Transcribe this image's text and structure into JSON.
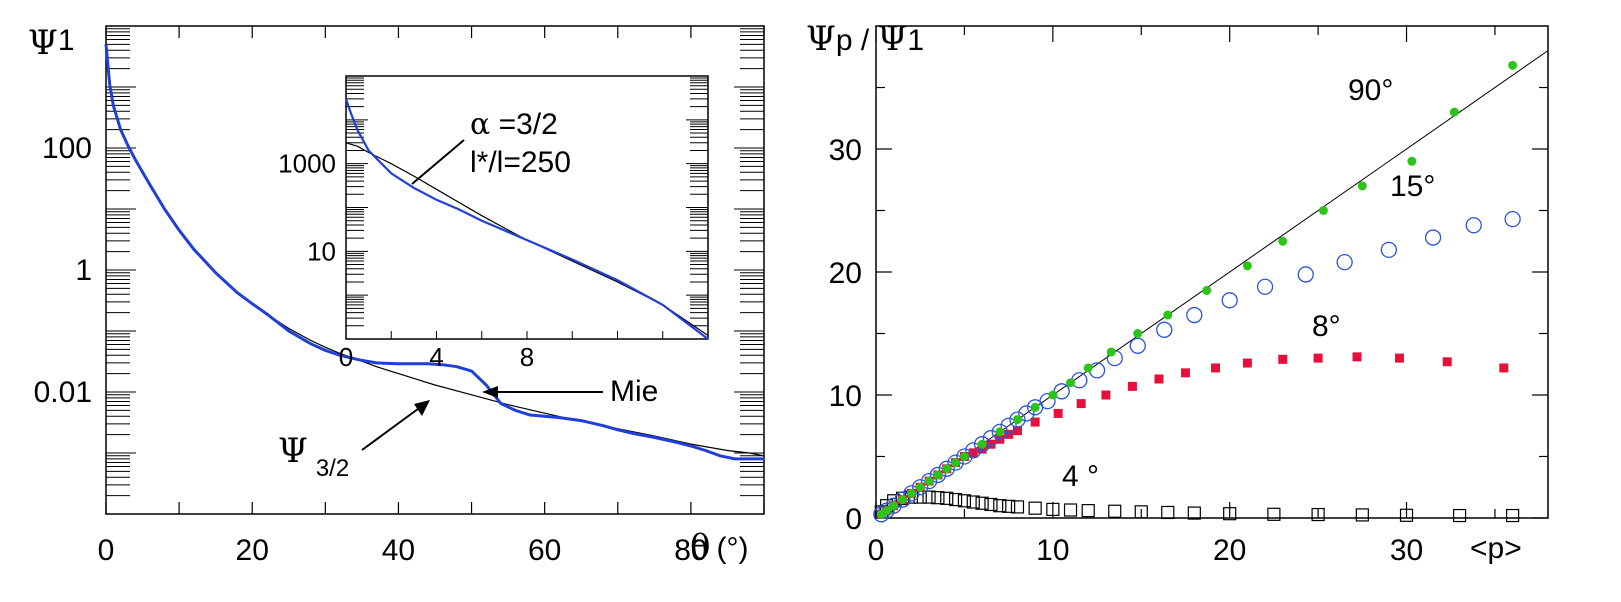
{
  "colors": {
    "blue": "#1f3fd8",
    "green": "#2cc41b",
    "red": "#e8103a",
    "black": "#000000",
    "open_circle": "#2b54d8"
  },
  "chart_data": [
    {
      "type": "line",
      "panel": "left",
      "ylabel_symbol": "Ψ",
      "ylabel_sup": "1",
      "xlabel_symbol": "θ",
      "xlabel_unit": "(°)",
      "xlim": [
        0,
        90
      ],
      "ylim_log10": [
        -4,
        4
      ],
      "yscale": "log",
      "xticks": [
        "0",
        "20",
        "40",
        "60",
        "80"
      ],
      "yticks": [
        "100",
        "1",
        "0.01"
      ],
      "annotations": {
        "mie": "Mie",
        "psi_symbol": "Ψ",
        "psi_sub": "3/2"
      },
      "series": [
        {
          "name": "Mie",
          "color": "#1f3fd8",
          "x": [
            0,
            0.5,
            1,
            2,
            3,
            4,
            5,
            6,
            8,
            10,
            12,
            15,
            18,
            20,
            22,
            25,
            28,
            30,
            32,
            35,
            37,
            40,
            42,
            44,
            46,
            48,
            50,
            52,
            54,
            56,
            58,
            60,
            62,
            65,
            68,
            70,
            72,
            75,
            78,
            80,
            82,
            84,
            86,
            88,
            90
          ],
          "y": [
            5000,
            1100,
            500,
            200,
            110,
            65,
            40,
            25,
            10,
            4.5,
            2.2,
            0.9,
            0.42,
            0.28,
            0.19,
            0.1,
            0.062,
            0.048,
            0.04,
            0.033,
            0.03,
            0.029,
            0.029,
            0.029,
            0.028,
            0.026,
            0.022,
            0.013,
            0.0065,
            0.005,
            0.0042,
            0.004,
            0.0038,
            0.0034,
            0.0028,
            0.0024,
            0.0021,
            0.0018,
            0.0015,
            0.0013,
            0.0011,
            0.0009,
            0.0008,
            0.0008,
            0.0008
          ]
        },
        {
          "name": "Ψ 3/2",
          "color": "#000000",
          "x": [
            0,
            0.5,
            1,
            2,
            3,
            4,
            5,
            6,
            8,
            10,
            12,
            15,
            18,
            20,
            22,
            25,
            28,
            30,
            32,
            35,
            37,
            40,
            45,
            50,
            55,
            60,
            65,
            70,
            75,
            80,
            85,
            88,
            90
          ],
          "y": [
            5000,
            1100,
            500,
            200,
            110,
            65,
            40,
            25,
            10,
            4.5,
            2.2,
            0.9,
            0.42,
            0.28,
            0.19,
            0.11,
            0.07,
            0.054,
            0.043,
            0.032,
            0.026,
            0.02,
            0.013,
            0.009,
            0.0062,
            0.0045,
            0.0033,
            0.0025,
            0.0019,
            0.0014,
            0.0011,
            0.001,
            0.0009
          ]
        }
      ],
      "inset": {
        "xticks": [
          "0",
          "4",
          "8"
        ],
        "yticks": [
          "1000",
          "10"
        ],
        "xlim": [
          0,
          16
        ],
        "ylim_log10": [
          -1,
          5
        ],
        "annotation_alpha_symbol": "α",
        "annotation_alpha": " =3/2",
        "annotation_l": "l*/l=250",
        "series": [
          {
            "name": "Mie",
            "color": "#1f3fd8",
            "x": [
              0,
              0.2,
              0.5,
              1,
              2,
              3,
              4,
              5,
              6,
              7,
              8,
              10,
              12,
              14,
              16
            ],
            "y": [
              30000,
              15000,
              6000,
              2000,
              600,
              280,
              150,
              90,
              50,
              30,
              18,
              6.5,
              2.2,
              0.6,
              0.1
            ]
          },
          {
            "name": "α =3/2 l*/l=250",
            "color": "#000000",
            "x": [
              0,
              0.5,
              1,
              2,
              3,
              4,
              5,
              6,
              7,
              8,
              10,
              12,
              14,
              16
            ],
            "y": [
              3000,
              2500,
              1800,
              1000,
              520,
              260,
              130,
              65,
              34,
              18,
              6,
              2,
              0.6,
              0.12
            ]
          }
        ]
      }
    },
    {
      "type": "scatter",
      "panel": "right",
      "ylabel_symbol1": "Ψ",
      "ylabel_sup1": "p",
      "ylabel_sep": " / ",
      "ylabel_symbol2": "Ψ",
      "ylabel_sup2": "1",
      "xlabel": "<p>",
      "xlim": [
        0,
        38
      ],
      "ylim": [
        0,
        40
      ],
      "xticks": [
        "0",
        "10",
        "20",
        "30"
      ],
      "yticks": [
        "0",
        "10",
        "20",
        "30"
      ],
      "reference_line": {
        "x": [
          0,
          38
        ],
        "y": [
          0,
          38
        ]
      },
      "series": [
        {
          "name": "90°",
          "color": "#2cc41b",
          "marker": "filled-circle",
          "x": [
            0.3,
            0.6,
            1,
            1.5,
            2,
            2.5,
            3,
            3.5,
            4,
            4.5,
            5,
            6,
            7,
            8,
            9,
            10,
            11,
            12,
            13.3,
            14.8,
            16.5,
            18.7,
            21,
            23,
            25.3,
            27.5,
            30.3,
            32.7,
            36
          ],
          "y": [
            0.3,
            0.6,
            1,
            1.5,
            2,
            2.5,
            3,
            3.5,
            4,
            4.5,
            5,
            6,
            7,
            8,
            9,
            10,
            11,
            12.2,
            13.5,
            15,
            16.5,
            18.5,
            20.5,
            22.5,
            25,
            27,
            29,
            33,
            36.8
          ]
        },
        {
          "name": "15°",
          "color": "#2b54d8",
          "marker": "open-circle",
          "x": [
            0.3,
            0.6,
            1,
            1.5,
            2,
            2.5,
            3,
            3.5,
            4,
            4.5,
            5,
            5.5,
            6,
            6.5,
            7,
            7.5,
            8,
            8.5,
            9,
            9.7,
            10.5,
            11.5,
            12.5,
            13.5,
            14.8,
            16.3,
            18,
            20,
            22,
            24.3,
            26.5,
            29,
            31.5,
            33.8,
            36
          ],
          "y": [
            0.3,
            0.6,
            1,
            1.5,
            2,
            2.5,
            3,
            3.5,
            4,
            4.5,
            5,
            5.5,
            6,
            6.5,
            7,
            7.5,
            8,
            8.5,
            9,
            9.5,
            10.3,
            11.2,
            12,
            13,
            14,
            15.3,
            16.5,
            17.7,
            18.8,
            19.8,
            20.8,
            21.8,
            22.8,
            23.8,
            24.3
          ]
        },
        {
          "name": "8°",
          "color": "#e8103a",
          "marker": "filled-square",
          "x": [
            0.3,
            0.6,
            1,
            1.5,
            2,
            2.5,
            3,
            3.5,
            4,
            4.5,
            5,
            5.5,
            6,
            6.5,
            7,
            7.5,
            8,
            9,
            10.3,
            11.6,
            13,
            14.5,
            16,
            17.5,
            19.2,
            21,
            23,
            25,
            27.2,
            29.6,
            32.3,
            35.5
          ],
          "y": [
            0.3,
            0.6,
            1,
            1.5,
            2,
            2.5,
            3,
            3.5,
            4,
            4.5,
            5,
            5.3,
            5.6,
            6,
            6.4,
            6.8,
            7.1,
            7.8,
            8.5,
            9.3,
            10,
            10.7,
            11.3,
            11.8,
            12.2,
            12.6,
            12.9,
            13,
            13.1,
            13,
            12.7,
            12.2
          ]
        },
        {
          "name": "4 °",
          "color": "#000000",
          "marker": "open-square",
          "x": [
            0.3,
            0.6,
            1,
            1.5,
            2,
            2.5,
            3,
            3.5,
            4,
            4.5,
            5,
            5.5,
            6,
            6.5,
            7,
            7.5,
            8,
            9,
            10,
            11,
            12,
            13.5,
            15,
            16.5,
            18,
            20,
            22.5,
            25,
            27.5,
            30,
            33,
            36
          ],
          "y": [
            0.5,
            1,
            1.4,
            1.6,
            1.7,
            1.7,
            1.7,
            1.65,
            1.6,
            1.5,
            1.4,
            1.3,
            1.2,
            1.1,
            1.0,
            0.95,
            0.9,
            0.8,
            0.7,
            0.65,
            0.6,
            0.55,
            0.5,
            0.45,
            0.4,
            0.35,
            0.3,
            0.28,
            0.25,
            0.22,
            0.2,
            0.2
          ]
        }
      ]
    }
  ]
}
